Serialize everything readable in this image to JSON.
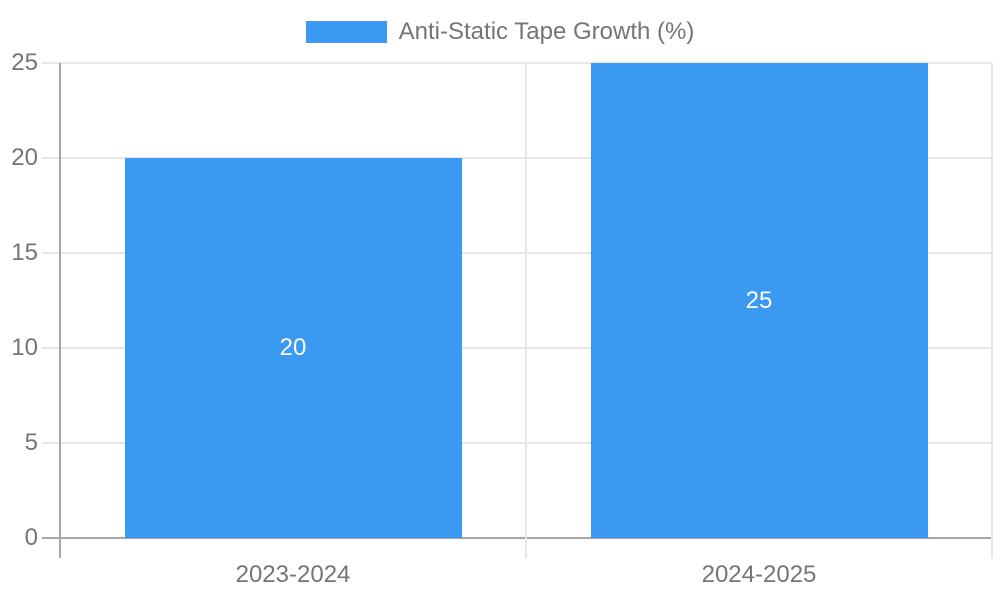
{
  "legend": {
    "label": "Anti-Static Tape Growth (%)",
    "swatch_color": "#3a99f0"
  },
  "chart_data": {
    "type": "bar",
    "title": "Anti-Static Tape Growth (%)",
    "categories": [
      "2023-2024",
      "2024-2025"
    ],
    "values": [
      20,
      25
    ],
    "bar_labels": [
      "20",
      "25"
    ],
    "series_color": "#3a99f0",
    "bar_label_color": "#ffffff",
    "ylim": [
      0,
      25
    ],
    "yticks": [
      0,
      5,
      10,
      15,
      20,
      25
    ],
    "grid": true,
    "legend_position": "top",
    "colors": {
      "grid": "#e7e7e7",
      "axis": "#a6a6a6",
      "text": "#757575"
    }
  }
}
